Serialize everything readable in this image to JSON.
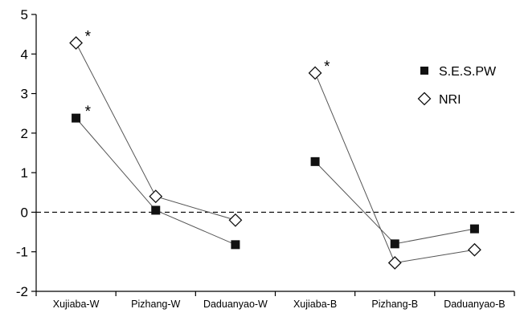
{
  "chart_data": {
    "type": "line",
    "categories": [
      "Xujiaba-W",
      "Pizhang-W",
      "Daduanyao-W",
      "Xujiaba-B",
      "Pizhang-B",
      "Daduanyao-B"
    ],
    "groups": [
      [
        0,
        1,
        2
      ],
      [
        3,
        4,
        5
      ]
    ],
    "series": [
      {
        "name": "S.E.S.PW",
        "marker": "filled-square",
        "color": "#111111",
        "values": [
          2.38,
          0.05,
          -0.82,
          1.28,
          -0.8,
          -0.42
        ]
      },
      {
        "name": "NRI",
        "marker": "open-diamond",
        "color": "#111111",
        "values": [
          4.28,
          0.4,
          -0.2,
          3.52,
          -1.28,
          -0.95
        ]
      }
    ],
    "annotations": [
      {
        "series": "S.E.S.PW",
        "category": "Xujiaba-W",
        "text": "*"
      },
      {
        "series": "NRI",
        "category": "Xujiaba-W",
        "text": "*"
      },
      {
        "series": "NRI",
        "category": "Xujiaba-B",
        "text": "*"
      }
    ],
    "ylim": [
      -2,
      5
    ],
    "yticks": [
      "-2",
      "-1",
      "0",
      "1",
      "2",
      "3",
      "4",
      "5"
    ],
    "reference_line": 0,
    "grid": false,
    "legend": "right",
    "title": "",
    "xlabel": "",
    "ylabel": ""
  }
}
